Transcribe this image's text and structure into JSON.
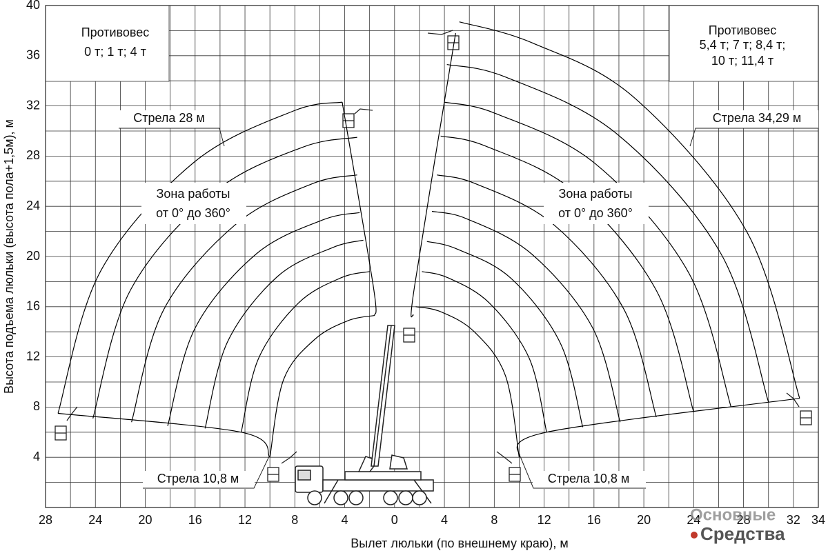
{
  "chart_data": {
    "type": "line",
    "x_label": "Вылет люльки (по внешнему краю), м",
    "y_label": "Высота подъема люльки (высота пола+1,5м), м",
    "color": "#000000",
    "grid": true,
    "xlim": [
      -28,
      34
    ],
    "ylim": [
      0,
      40
    ],
    "xticks": [
      {
        "value": -28,
        "label": "28"
      },
      {
        "value": -24,
        "label": "24"
      },
      {
        "value": -20,
        "label": "20"
      },
      {
        "value": -16,
        "label": "16"
      },
      {
        "value": -12,
        "label": "12"
      },
      {
        "value": -8,
        "label": "8"
      },
      {
        "value": -4,
        "label": "4"
      },
      0,
      4,
      8,
      12,
      16,
      20,
      24,
      28,
      32,
      34
    ],
    "yticks": [
      4,
      8,
      12,
      16,
      20,
      24,
      28,
      32,
      36,
      40
    ],
    "series": [
      {
        "x": [
          -27,
          -23.6,
          -16.1,
          -8.1,
          -4.2
        ],
        "values": [
          7.5,
          18.8,
          27.5,
          31.6,
          32.3
        ]
      },
      {
        "x": [
          -24.2,
          -21.2,
          -14.5,
          -7.4,
          -3
        ],
        "values": [
          7.1,
          17.3,
          25.1,
          28.7,
          29.5
        ]
      },
      {
        "x": [
          -21.1,
          -18.5,
          -12.7,
          -6.6,
          -3
        ],
        "values": [
          6.8,
          15.8,
          22.6,
          25.8,
          26.5
        ]
      },
      {
        "x": [
          -18.2,
          -16,
          -11.1,
          -5.8,
          -2.8
        ],
        "values": [
          6.5,
          14.3,
          20.2,
          22.9,
          23.5
        ]
      },
      {
        "x": [
          -15.2,
          -13.4,
          -9.4,
          -5,
          -2.5
        ],
        "values": [
          6.3,
          13.2,
          18.4,
          20.7,
          21.3
        ]
      },
      {
        "x": [
          -12.3,
          -10.9,
          -7.7,
          -4.3,
          -2
        ],
        "values": [
          6,
          11.9,
          16.3,
          18.3,
          18.8
        ]
      },
      {
        "x": [
          -10,
          -8.9,
          -6.4,
          -3.7,
          -1.6
        ],
        "values": [
          4,
          10.2,
          13.4,
          14.9,
          15.3
        ]
      },
      {
        "x": [
          -4.2,
          -1.7,
          -1.6
        ],
        "values": [
          32.3,
          17.6,
          15.3
        ]
      },
      {
        "x": [
          -27,
          -12.3,
          -10
        ],
        "values": [
          7.5,
          6,
          4
        ]
      },
      {
        "x": [
          32.5,
          28.3,
          19.3,
          11.1,
          5.2
        ],
        "values": [
          8.7,
          21.9,
          32.6,
          37,
          38.7
        ]
      },
      {
        "x": [
          30,
          26.2,
          17.8,
          8.9,
          4.2
        ],
        "values": [
          8.4,
          20.2,
          29.8,
          34.3,
          35.3
        ]
      },
      {
        "x": [
          27,
          23.6,
          16.1,
          8.1,
          4
        ],
        "values": [
          8,
          18.7,
          27.4,
          31.4,
          32.3
        ]
      },
      {
        "x": [
          24,
          21,
          14.4,
          7.3,
          3.7
        ],
        "values": [
          7.6,
          17.3,
          25.2,
          28.8,
          29.6
        ]
      },
      {
        "x": [
          21,
          18.4,
          12.7,
          6.5,
          3.4
        ],
        "values": [
          7.2,
          15.8,
          22.6,
          25.8,
          26.5
        ]
      },
      {
        "x": [
          18.1,
          15.9,
          11,
          5.8,
          3
        ],
        "values": [
          6.8,
          14.3,
          20.2,
          23,
          23.6
        ]
      },
      {
        "x": [
          15.1,
          13.3,
          9.3,
          5,
          2.6
        ],
        "values": [
          6.4,
          13.1,
          18.3,
          20.6,
          21.2
        ]
      },
      {
        "x": [
          12.2,
          10.8,
          7.6,
          4.3,
          2.2
        ],
        "values": [
          6,
          11.9,
          16.3,
          18.3,
          18.8
        ]
      },
      {
        "x": [
          10,
          8.9,
          6.4,
          3.7,
          1.7
        ],
        "values": [
          4,
          10.5,
          14,
          15.6,
          16
        ]
      },
      {
        "x": [
          4.9,
          1.6,
          1.5
        ],
        "values": [
          37.8,
          17.6,
          15.3
        ]
      },
      {
        "x": [
          32.5,
          12.2,
          10
        ],
        "values": [
          8.7,
          6,
          4
        ]
      }
    ],
    "annotations": [
      {
        "text": [
          "Противовес",
          "0 т; 1 т; 4 т"
        ]
      },
      {
        "text": [
          "Противовес",
          "5,4 т; 7 т; 8,4 т;",
          "10 т; 11,4 т"
        ]
      },
      {
        "text": [
          "Стрела 28 м"
        ]
      },
      {
        "text": [
          "Стрела 34,29 м"
        ]
      },
      {
        "text": [
          "Зона работы",
          "от 0° до 360°"
        ]
      },
      {
        "text": [
          "Зона работы",
          "от 0° до 360°"
        ]
      },
      {
        "text": [
          "Стрела 10,8 м"
        ]
      },
      {
        "text": [
          "Стрела 10,8 м"
        ]
      }
    ],
    "watermark": [
      "Основные",
      "Средства"
    ]
  }
}
